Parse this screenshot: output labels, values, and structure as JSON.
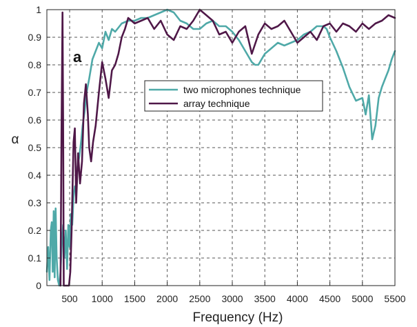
{
  "chart_data": {
    "type": "line",
    "xlabel": "Frequency (Hz)",
    "ylabel": "α",
    "panel_label": "a",
    "xlim": [
      150,
      5500
    ],
    "ylim": [
      0,
      1
    ],
    "xticks": [
      500,
      1000,
      1500,
      2000,
      2500,
      3000,
      3500,
      4000,
      4500,
      5000,
      5500
    ],
    "yticks": [
      0,
      0.1,
      0.2,
      0.3,
      0.4,
      0.5,
      0.6,
      0.7,
      0.8,
      0.9,
      1
    ],
    "grid": true,
    "legend_position": "center-right",
    "series": [
      {
        "name": "two microphones technique",
        "color": "#4fa9a8",
        "x": [
          150,
          170,
          190,
          210,
          225,
          240,
          255,
          270,
          285,
          300,
          320,
          340,
          360,
          380,
          400,
          420,
          440,
          460,
          480,
          500,
          520,
          540,
          560,
          580,
          600,
          620,
          650,
          680,
          700,
          730,
          760,
          800,
          850,
          900,
          950,
          1000,
          1050,
          1100,
          1150,
          1200,
          1300,
          1400,
          1500,
          1600,
          1700,
          1800,
          1900,
          2000,
          2100,
          2200,
          2300,
          2400,
          2500,
          2600,
          2700,
          2800,
          2900,
          3000,
          3100,
          3200,
          3300,
          3350,
          3400,
          3500,
          3600,
          3700,
          3800,
          3900,
          4000,
          4100,
          4200,
          4300,
          4400,
          4450,
          4500,
          4600,
          4700,
          4800,
          4900,
          5000,
          5050,
          5100,
          5150,
          5200,
          5250,
          5300,
          5350,
          5400,
          5450,
          5500
        ],
        "y": [
          0.05,
          0.14,
          0.02,
          0.2,
          0.23,
          0.05,
          0.27,
          0.03,
          0.28,
          0.1,
          0.02,
          0.0,
          0.05,
          0.15,
          0.22,
          0.1,
          0.2,
          0.06,
          0.22,
          0.14,
          0.26,
          0.22,
          0.32,
          0.36,
          0.34,
          0.43,
          0.47,
          0.53,
          0.58,
          0.63,
          0.7,
          0.75,
          0.82,
          0.85,
          0.88,
          0.86,
          0.92,
          0.89,
          0.93,
          0.92,
          0.95,
          0.96,
          0.96,
          0.97,
          0.97,
          0.98,
          0.99,
          1.0,
          0.99,
          0.96,
          0.95,
          0.93,
          0.93,
          0.95,
          0.96,
          0.94,
          0.94,
          0.92,
          0.89,
          0.85,
          0.81,
          0.8,
          0.8,
          0.84,
          0.86,
          0.88,
          0.87,
          0.88,
          0.89,
          0.91,
          0.92,
          0.94,
          0.94,
          0.93,
          0.9,
          0.85,
          0.79,
          0.72,
          0.67,
          0.68,
          0.62,
          0.69,
          0.53,
          0.58,
          0.68,
          0.72,
          0.75,
          0.78,
          0.82,
          0.85
        ]
      },
      {
        "name": "array technique",
        "color": "#4f1848",
        "x": [
          360,
          375,
          390,
          400,
          410,
          430,
          460,
          490,
          510,
          530,
          560,
          580,
          600,
          630,
          660,
          690,
          720,
          750,
          780,
          800,
          830,
          860,
          900,
          950,
          1000,
          1050,
          1100,
          1150,
          1200,
          1250,
          1300,
          1350,
          1400,
          1500,
          1600,
          1700,
          1800,
          1900,
          2000,
          2100,
          2200,
          2300,
          2400,
          2500,
          2600,
          2700,
          2800,
          2900,
          3000,
          3100,
          3200,
          3300,
          3400,
          3500,
          3600,
          3700,
          3800,
          3900,
          4000,
          4100,
          4200,
          4300,
          4400,
          4500,
          4600,
          4700,
          4800,
          4900,
          5000,
          5100,
          5200,
          5300,
          5400,
          5500
        ],
        "y": [
          0.0,
          0.55,
          0.99,
          0.6,
          0.0,
          0.0,
          0.0,
          0.0,
          0.05,
          0.2,
          0.52,
          0.57,
          0.3,
          0.48,
          0.37,
          0.45,
          0.66,
          0.73,
          0.62,
          0.5,
          0.45,
          0.52,
          0.58,
          0.7,
          0.81,
          0.75,
          0.68,
          0.78,
          0.8,
          0.84,
          0.9,
          0.93,
          0.97,
          0.95,
          0.96,
          0.97,
          0.93,
          0.96,
          0.91,
          0.89,
          0.94,
          0.93,
          0.96,
          1.0,
          0.98,
          0.96,
          0.91,
          0.92,
          0.88,
          0.92,
          0.94,
          0.84,
          0.91,
          0.95,
          0.93,
          0.94,
          0.96,
          0.92,
          0.88,
          0.9,
          0.92,
          0.89,
          0.94,
          0.95,
          0.92,
          0.95,
          0.94,
          0.92,
          0.95,
          0.93,
          0.95,
          0.96,
          0.98,
          0.97
        ]
      }
    ]
  }
}
